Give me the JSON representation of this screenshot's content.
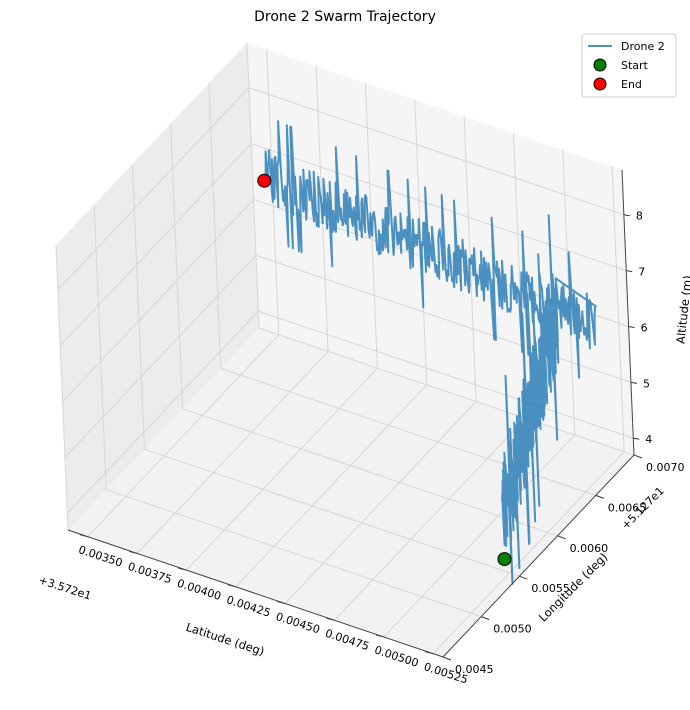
{
  "chart_data": {
    "type": "line",
    "title": "Drone 2 Swarm Trajectory",
    "xlabel": "Latitude (deg)",
    "ylabel": "Longitude (deg)",
    "zlabel": "Altitude (m)",
    "x_offset_label": "+3.572e1",
    "y_offset_label": "+5.127e1",
    "x_ticks": [
      "0.00350",
      "0.00375",
      "0.00400",
      "0.00425",
      "0.00450",
      "0.00475",
      "0.00500",
      "0.00525"
    ],
    "y_ticks": [
      "0.0045",
      "0.0050",
      "0.0055",
      "0.0060",
      "0.0065",
      "0.0070"
    ],
    "z_ticks": [
      "4",
      "5",
      "6",
      "7",
      "8"
    ],
    "xlim": [
      0.0034,
      0.0053
    ],
    "ylim": [
      0.0045,
      0.007
    ],
    "zlim": [
      3.7,
      8.8
    ],
    "series": [
      {
        "name": "Drone 2",
        "color": "#1f77b4",
        "segments": [
          {
            "x0": 0.00535,
            "x1": 0.0051,
            "y0": 0.0052,
            "y1": 0.0066,
            "zc0": 5.3,
            "zc1": 6.6,
            "spread": 0.9
          },
          {
            "x0": 0.0053,
            "x1": 0.0035,
            "y0": 0.0066,
            "y1": 0.0069,
            "zc0": 6.6,
            "zc1": 6.7,
            "spread": 0.5
          }
        ]
      },
      {
        "name": "Start",
        "color": "#008000",
        "x": 0.00535,
        "y": 0.0052,
        "z": 4.5
      },
      {
        "name": "End",
        "color": "#ff0000",
        "x": 0.0035,
        "y": 0.0069,
        "z": 6.6
      }
    ],
    "legend": {
      "placement": "top-right",
      "entries": [
        "Drone 2",
        "Start",
        "End"
      ]
    },
    "grid": true,
    "projection": "3d"
  }
}
